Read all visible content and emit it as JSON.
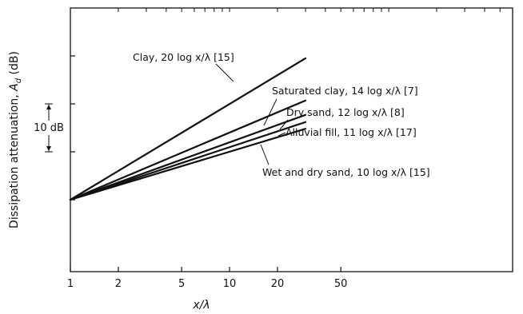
{
  "chart_data": {
    "type": "line",
    "x_scale": "log",
    "title": "",
    "xlabel": "x/λ",
    "ylabel": "Dissipation attenuation, A_d (dB)",
    "ylabel_parts": [
      "Dissipation attenuation, ",
      "A",
      "d",
      " (dB)"
    ],
    "x_ticks": [
      1,
      2,
      5,
      10,
      20,
      50
    ],
    "x_tick_labels": [
      "1",
      "2",
      "5",
      "10",
      "20",
      "50"
    ],
    "xlim": [
      1,
      600
    ],
    "ylim": [
      -15,
      40
    ],
    "y_tick_values": [
      0,
      10,
      20,
      30
    ],
    "scale_bar": {
      "label": "10 dB",
      "from": 10,
      "to": 20
    },
    "grid": false,
    "series": [
      {
        "name": "Clay, 20 log x/λ [15]",
        "coefficient": 20,
        "x": [
          1,
          30
        ],
        "values": [
          0,
          29.5
        ]
      },
      {
        "name": "Saturated clay, 14 log x/λ [7]",
        "coefficient": 14,
        "x": [
          1,
          30
        ],
        "values": [
          0,
          20.7
        ]
      },
      {
        "name": "Dry sand, 12 log x/λ [8]",
        "coefficient": 12,
        "x": [
          1,
          30
        ],
        "values": [
          0,
          17.7
        ]
      },
      {
        "name": "Alluvial fill, 11 log x/λ [17]",
        "coefficient": 11,
        "x": [
          1,
          30
        ],
        "values": [
          0,
          16.2
        ]
      },
      {
        "name": "Wet and dry sand, 10 log x/λ [15]",
        "coefficient": 10,
        "x": [
          1,
          30
        ],
        "values": [
          0,
          14.8
        ]
      }
    ]
  }
}
